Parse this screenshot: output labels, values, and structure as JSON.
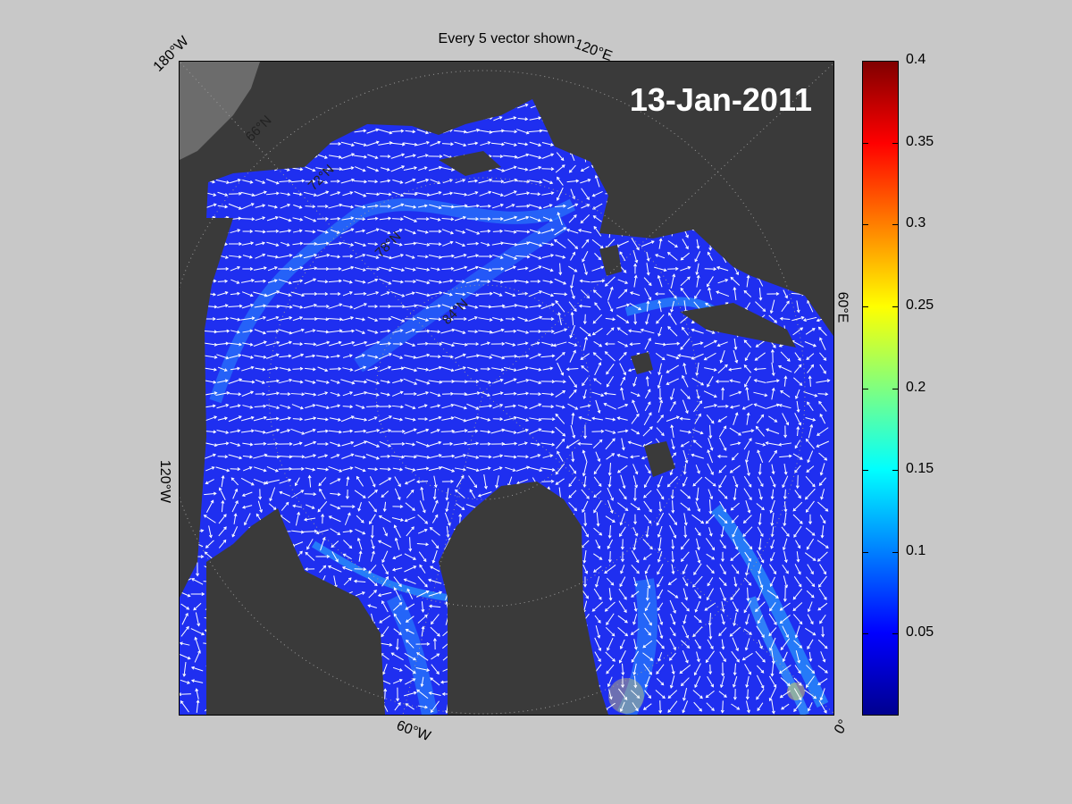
{
  "title": "Every 5 vector shown",
  "date_label": "13-Jan-2011",
  "lon_labels": {
    "w180": "180°W",
    "e120": "120°E",
    "e60": "60°E",
    "w120": "120°W",
    "w60": "60°W",
    "zero": "0°"
  },
  "lat_labels": {
    "n66": "66°N",
    "n72": "72°N",
    "n78": "78°N",
    "n84": "84°N"
  },
  "colorbar": {
    "min": 0,
    "max": 0.4,
    "labels": [
      "0.4",
      "0.35",
      "0.3",
      "0.25",
      "0.2",
      "0.15",
      "0.1",
      "0.05"
    ],
    "values": [
      0.4,
      0.35,
      0.3,
      0.25,
      0.2,
      0.15,
      0.1,
      0.05
    ]
  },
  "colors": {
    "ocean": "#1f2ff0",
    "land": "#3a3a3a",
    "lightland": "#7a7a7a",
    "arrow": "#ffffff"
  }
}
